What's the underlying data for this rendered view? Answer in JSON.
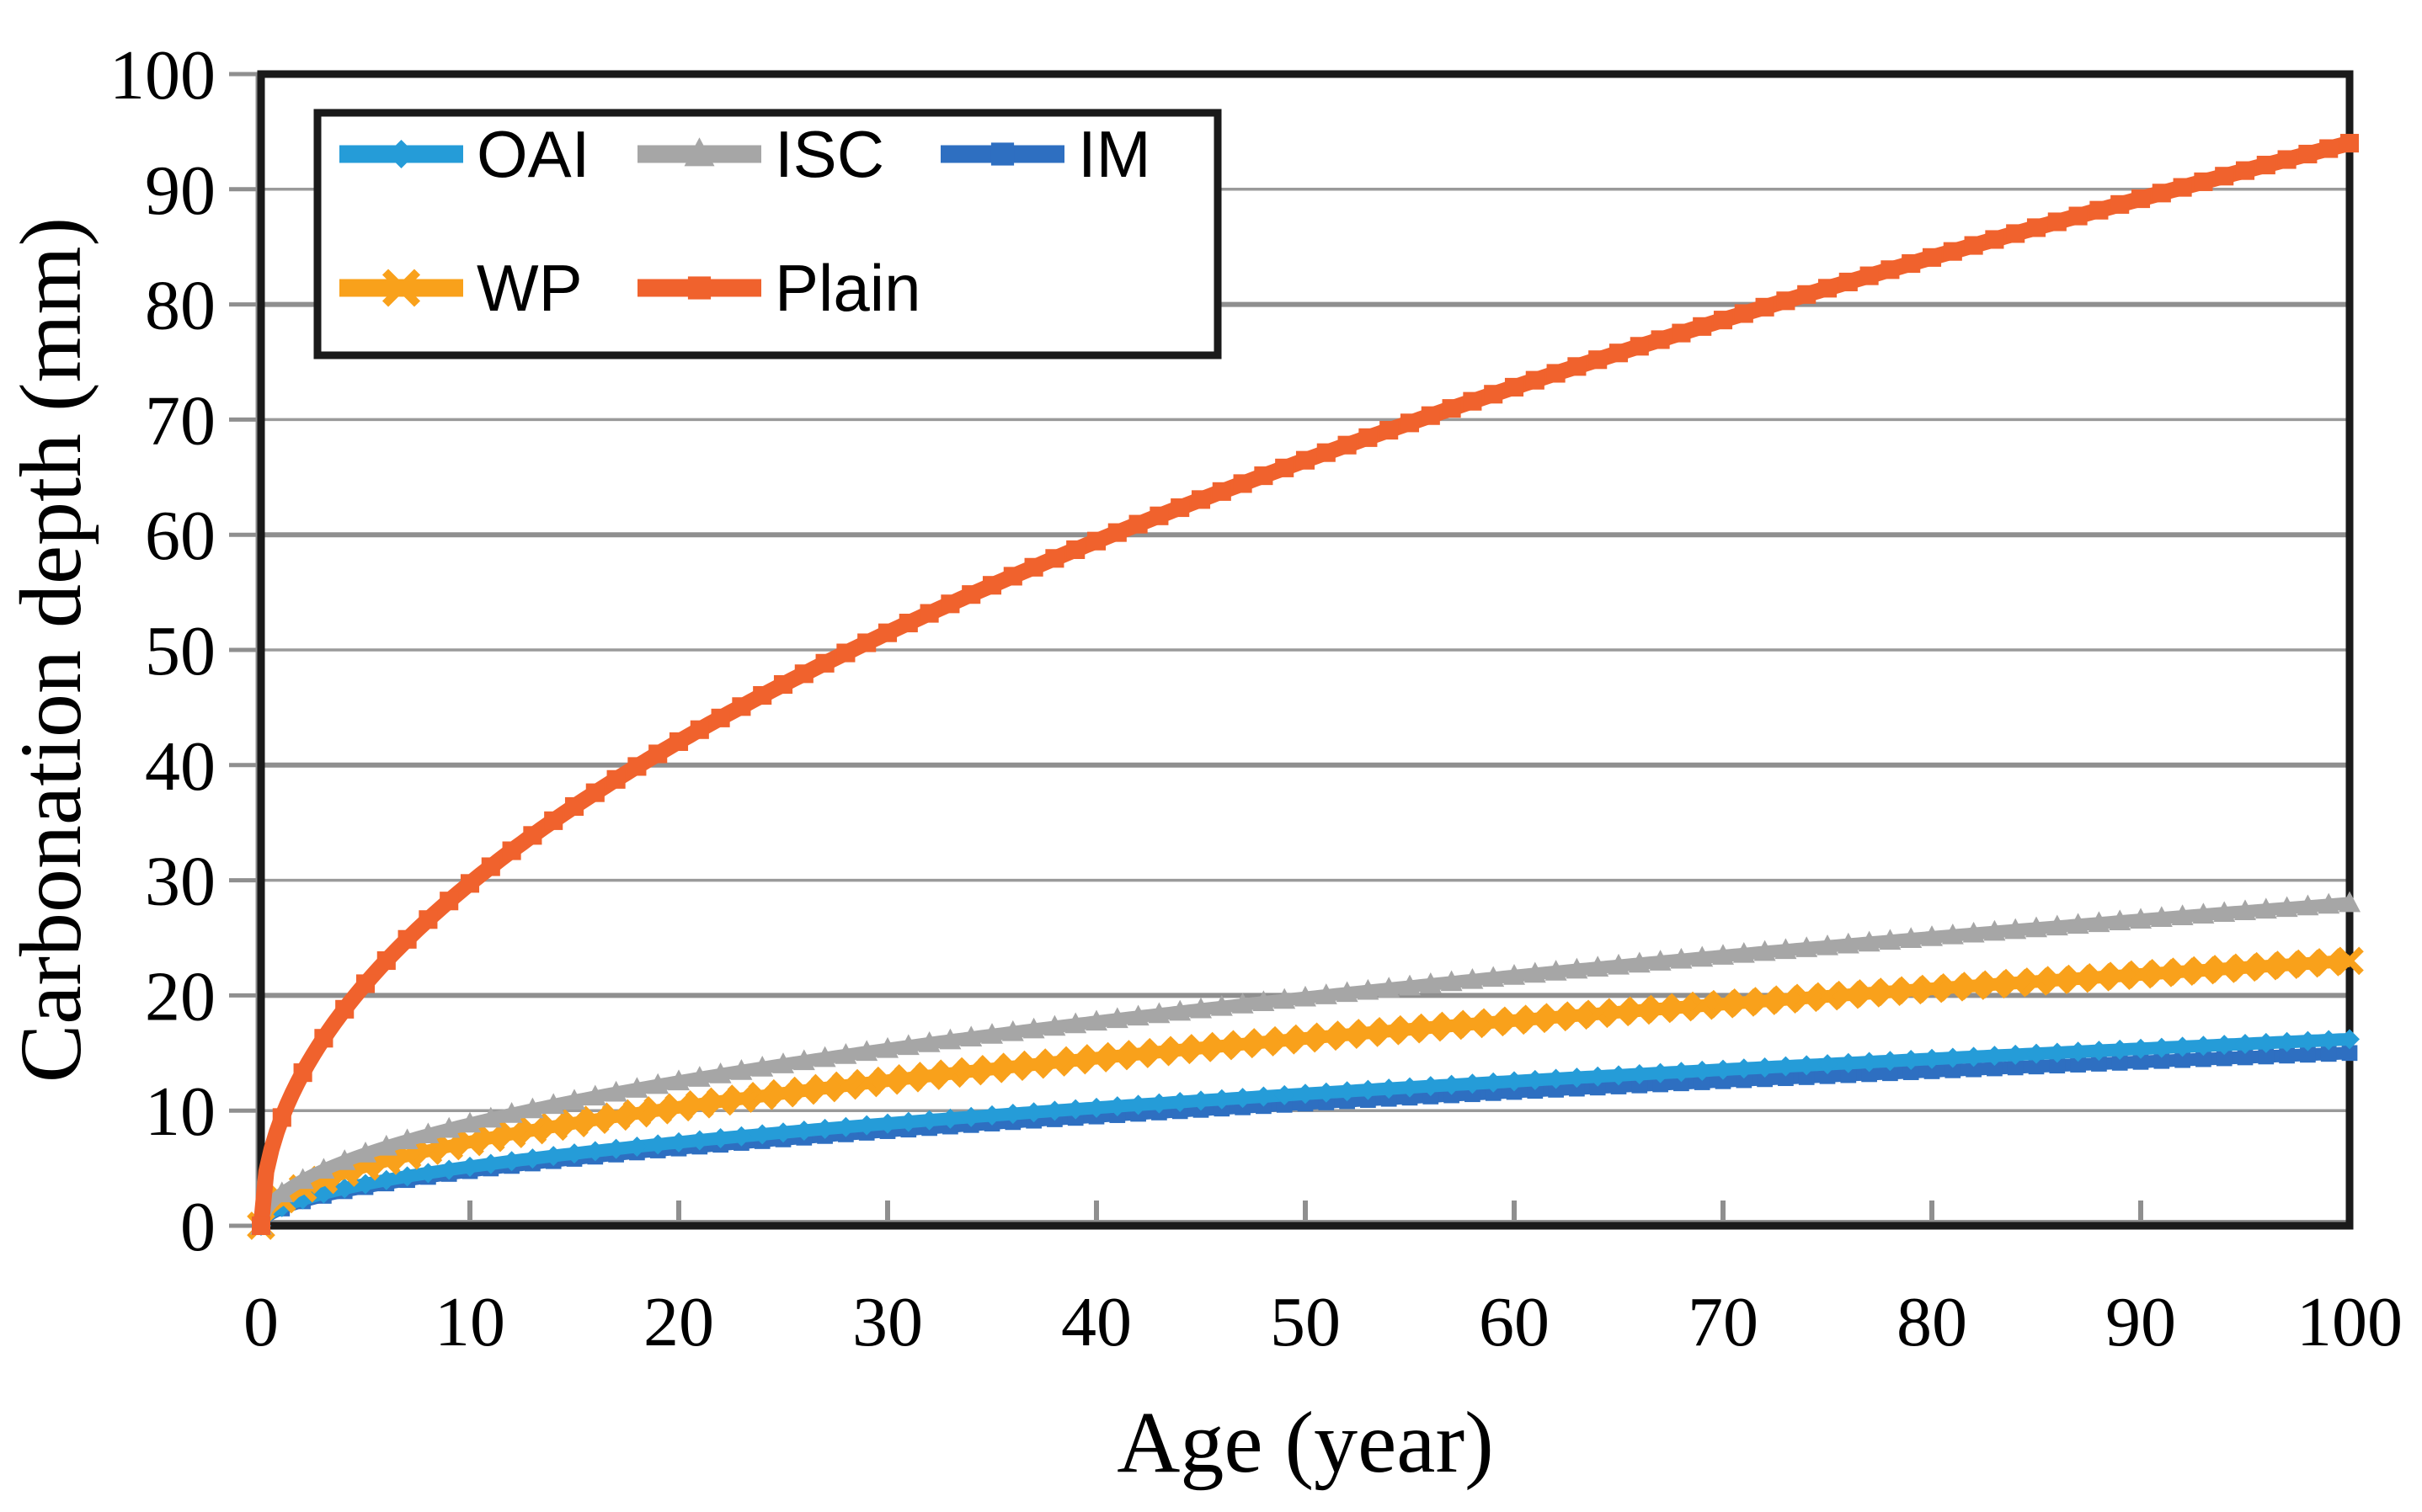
{
  "figure": {
    "background": "#ffffff",
    "plot_border_color": "#1a1a1a",
    "grid_color_major": "#8f8f8f",
    "grid_color_minor": "#9a9a9a",
    "tick_color": "#8f8f8f",
    "text_color": "#000000"
  },
  "chart_data": {
    "type": "line",
    "title": "",
    "xlabel": "Age (year)",
    "ylabel": "Carbonation depth (mm)",
    "xlim": [
      0,
      100
    ],
    "ylim": [
      0,
      100
    ],
    "x_ticks": [
      0,
      10,
      20,
      30,
      40,
      50,
      60,
      70,
      80,
      90,
      100
    ],
    "y_ticks": [
      0,
      10,
      20,
      30,
      40,
      50,
      60,
      70,
      80,
      90,
      100
    ],
    "grid": "horizontal",
    "legend_position": "top-left-inside",
    "model": "depth_mm = k * sqrt(age_year)",
    "x_sample_step": 5,
    "x_samples": [
      0,
      5,
      10,
      15,
      20,
      25,
      30,
      35,
      40,
      45,
      50,
      55,
      60,
      65,
      70,
      75,
      80,
      85,
      90,
      95,
      100
    ],
    "series": [
      {
        "name": "IM",
        "color": "#2E6FC1",
        "marker": "square",
        "k": 1.5,
        "values": [
          0,
          3.4,
          4.7,
          5.8,
          6.7,
          7.5,
          8.2,
          8.9,
          9.5,
          10.1,
          10.6,
          11.1,
          11.6,
          12.1,
          12.6,
          13.0,
          13.4,
          13.8,
          14.2,
          14.6,
          15.0
        ]
      },
      {
        "name": "OAI",
        "color": "#259CD8",
        "marker": "diamond",
        "k": 1.62,
        "values": [
          0,
          3.6,
          5.1,
          6.3,
          7.2,
          8.1,
          8.9,
          9.6,
          10.2,
          10.9,
          11.5,
          12.0,
          12.6,
          13.1,
          13.6,
          14.0,
          14.5,
          14.9,
          15.4,
          15.8,
          16.2
        ]
      },
      {
        "name": "WP",
        "color": "#F9A11B",
        "marker": "x",
        "k": 2.3,
        "values": [
          0,
          5.1,
          7.3,
          8.9,
          10.3,
          11.5,
          12.6,
          13.6,
          14.5,
          15.4,
          16.3,
          17.1,
          17.8,
          18.5,
          19.2,
          19.9,
          20.6,
          21.2,
          21.8,
          22.4,
          23.0
        ]
      },
      {
        "name": "ISC",
        "color": "#A6A6A6",
        "marker": "triangle",
        "k": 2.8,
        "values": [
          0,
          6.3,
          8.9,
          10.8,
          12.5,
          14.0,
          15.3,
          16.6,
          17.7,
          18.8,
          19.8,
          20.8,
          21.7,
          22.6,
          23.4,
          24.2,
          25.0,
          25.8,
          26.6,
          27.3,
          28.0
        ]
      },
      {
        "name": "Plain",
        "color": "#F0622D",
        "marker": "square",
        "k": 9.4,
        "values": [
          0,
          21.0,
          29.7,
          36.4,
          42.0,
          47.0,
          51.5,
          55.6,
          59.4,
          63.1,
          66.5,
          69.7,
          72.8,
          75.8,
          78.6,
          81.4,
          84.1,
          86.7,
          89.2,
          91.6,
          94.0
        ]
      }
    ],
    "legend_rows": [
      [
        "OAI",
        "ISC",
        "IM"
      ],
      [
        "WP",
        "Plain"
      ]
    ]
  }
}
